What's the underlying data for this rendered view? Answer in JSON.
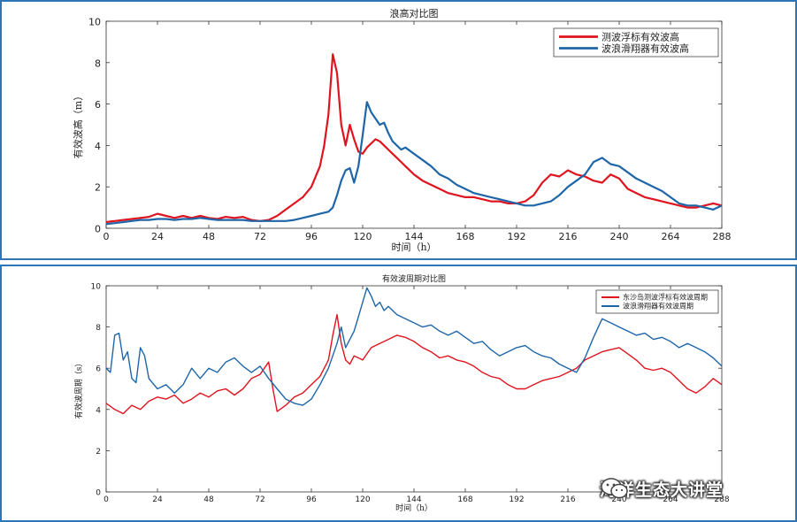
{
  "chart_data": [
    {
      "type": "line",
      "title": "浪高对比图",
      "xlabel": "时间（h）",
      "ylabel": "有效波高（m）",
      "xlim": [
        0,
        288
      ],
      "ylim": [
        0,
        10
      ],
      "xticks": [
        0,
        24,
        48,
        72,
        96,
        120,
        144,
        168,
        192,
        216,
        240,
        264,
        288
      ],
      "yticks": [
        0,
        2,
        4,
        6,
        8,
        10
      ],
      "legend_position": "top-right",
      "series": [
        {
          "name": "测波浮标有效波高",
          "color": "#e0141e",
          "x": [
            0,
            4,
            8,
            12,
            16,
            20,
            24,
            28,
            32,
            36,
            40,
            44,
            48,
            52,
            56,
            60,
            64,
            68,
            72,
            76,
            80,
            84,
            88,
            92,
            96,
            100,
            102,
            104,
            106,
            108,
            110,
            112,
            114,
            116,
            118,
            120,
            122,
            124,
            126,
            128,
            130,
            132,
            134,
            136,
            138,
            140,
            144,
            148,
            152,
            156,
            160,
            164,
            168,
            172,
            176,
            180,
            184,
            188,
            192,
            196,
            200,
            204,
            208,
            212,
            216,
            220,
            224,
            228,
            232,
            236,
            240,
            244,
            248,
            252,
            256,
            260,
            264,
            268,
            272,
            276,
            280,
            284,
            288
          ],
          "values": [
            0.3,
            0.35,
            0.4,
            0.45,
            0.5,
            0.55,
            0.7,
            0.6,
            0.5,
            0.6,
            0.5,
            0.6,
            0.5,
            0.45,
            0.55,
            0.5,
            0.55,
            0.4,
            0.35,
            0.4,
            0.6,
            0.9,
            1.2,
            1.5,
            2.0,
            3.0,
            4.0,
            5.5,
            8.4,
            7.5,
            5.0,
            4.0,
            5.0,
            4.3,
            3.7,
            3.6,
            3.9,
            4.1,
            4.3,
            4.2,
            4.0,
            3.8,
            3.6,
            3.4,
            3.2,
            3.0,
            2.6,
            2.3,
            2.1,
            1.9,
            1.7,
            1.6,
            1.5,
            1.5,
            1.4,
            1.3,
            1.3,
            1.2,
            1.2,
            1.3,
            1.6,
            2.2,
            2.6,
            2.5,
            2.8,
            2.6,
            2.5,
            2.3,
            2.2,
            2.6,
            2.4,
            1.9,
            1.7,
            1.5,
            1.4,
            1.3,
            1.2,
            1.1,
            1.0,
            1.0,
            1.1,
            1.2,
            1.1
          ]
        },
        {
          "name": "波浪滑翔器有效波高",
          "color": "#1f66a8",
          "x": [
            0,
            4,
            8,
            12,
            16,
            20,
            24,
            28,
            32,
            36,
            40,
            44,
            48,
            52,
            56,
            60,
            64,
            68,
            72,
            76,
            80,
            84,
            88,
            92,
            96,
            100,
            104,
            106,
            108,
            110,
            112,
            114,
            116,
            118,
            120,
            122,
            124,
            126,
            128,
            130,
            132,
            134,
            136,
            138,
            140,
            144,
            148,
            152,
            156,
            160,
            164,
            168,
            172,
            176,
            180,
            184,
            188,
            192,
            196,
            200,
            204,
            208,
            212,
            216,
            220,
            224,
            228,
            232,
            236,
            240,
            244,
            248,
            252,
            256,
            260,
            264,
            268,
            272,
            276,
            280,
            284,
            288
          ],
          "values": [
            0.2,
            0.25,
            0.3,
            0.35,
            0.4,
            0.4,
            0.45,
            0.45,
            0.4,
            0.45,
            0.45,
            0.5,
            0.45,
            0.4,
            0.4,
            0.4,
            0.4,
            0.35,
            0.35,
            0.35,
            0.35,
            0.35,
            0.4,
            0.5,
            0.6,
            0.7,
            0.8,
            1.0,
            1.6,
            2.3,
            2.8,
            2.9,
            2.2,
            3.0,
            4.5,
            6.1,
            5.6,
            5.3,
            5.0,
            5.1,
            4.6,
            4.2,
            4.0,
            3.8,
            3.9,
            3.6,
            3.3,
            3.0,
            2.6,
            2.4,
            2.1,
            1.9,
            1.7,
            1.6,
            1.5,
            1.4,
            1.3,
            1.2,
            1.1,
            1.1,
            1.2,
            1.3,
            1.6,
            2.0,
            2.3,
            2.6,
            3.2,
            3.4,
            3.1,
            3.0,
            2.7,
            2.4,
            2.2,
            2.0,
            1.8,
            1.5,
            1.2,
            1.1,
            1.1,
            1.0,
            0.9,
            1.1
          ]
        }
      ]
    },
    {
      "type": "line",
      "title": "有效波周期对比图",
      "xlabel": "时间（h）",
      "ylabel": "有效波周期（s）",
      "xlim": [
        0,
        288
      ],
      "ylim": [
        0,
        10
      ],
      "xticks": [
        0,
        24,
        48,
        72,
        96,
        120,
        144,
        168,
        192,
        216,
        240,
        264,
        288
      ],
      "yticks": [
        0,
        2,
        4,
        6,
        8,
        10
      ],
      "legend_position": "top-right",
      "series": [
        {
          "name": "东沙岛测波浮标有效波周期",
          "color": "#e0141e",
          "x": [
            0,
            4,
            8,
            12,
            16,
            20,
            24,
            28,
            32,
            36,
            40,
            44,
            48,
            52,
            56,
            60,
            64,
            68,
            72,
            76,
            78,
            80,
            84,
            88,
            92,
            96,
            100,
            104,
            106,
            108,
            110,
            112,
            114,
            116,
            118,
            120,
            124,
            128,
            132,
            136,
            140,
            144,
            148,
            152,
            156,
            160,
            164,
            168,
            172,
            176,
            180,
            184,
            188,
            192,
            196,
            200,
            204,
            208,
            212,
            216,
            220,
            224,
            228,
            232,
            236,
            240,
            244,
            248,
            252,
            256,
            260,
            264,
            268,
            272,
            276,
            280,
            284,
            288
          ],
          "values": [
            4.3,
            4.0,
            3.8,
            4.2,
            4.0,
            4.4,
            4.6,
            4.5,
            4.7,
            4.3,
            4.5,
            4.8,
            4.6,
            4.9,
            5.0,
            4.7,
            5.0,
            5.5,
            5.7,
            6.3,
            5.0,
            3.9,
            4.2,
            4.6,
            4.8,
            5.2,
            5.6,
            6.4,
            7.6,
            8.6,
            7.2,
            6.4,
            6.2,
            6.6,
            6.5,
            6.4,
            7.0,
            7.2,
            7.4,
            7.6,
            7.5,
            7.3,
            7.0,
            6.8,
            6.5,
            6.6,
            6.4,
            6.3,
            6.1,
            5.8,
            5.6,
            5.5,
            5.2,
            5.0,
            5.0,
            5.2,
            5.4,
            5.5,
            5.6,
            5.8,
            6.0,
            6.4,
            6.6,
            6.8,
            6.9,
            7.0,
            6.7,
            6.4,
            6.0,
            5.9,
            6.0,
            5.8,
            5.4,
            5.0,
            4.8,
            5.1,
            5.5,
            5.2
          ]
        },
        {
          "name": "波浪滑翔器有效波周期",
          "color": "#1f66a8",
          "x": [
            0,
            2,
            4,
            6,
            8,
            10,
            12,
            14,
            16,
            18,
            20,
            24,
            28,
            32,
            36,
            40,
            44,
            48,
            52,
            56,
            60,
            64,
            68,
            72,
            76,
            80,
            84,
            88,
            92,
            96,
            100,
            104,
            108,
            110,
            112,
            114,
            116,
            118,
            120,
            122,
            124,
            126,
            128,
            130,
            132,
            136,
            140,
            144,
            148,
            152,
            156,
            160,
            164,
            168,
            172,
            176,
            180,
            184,
            188,
            192,
            196,
            200,
            204,
            208,
            212,
            216,
            220,
            224,
            228,
            232,
            236,
            240,
            244,
            248,
            252,
            256,
            260,
            264,
            268,
            272,
            276,
            280,
            284,
            288
          ],
          "values": [
            6.0,
            5.8,
            7.6,
            7.7,
            6.4,
            6.8,
            5.5,
            5.3,
            7.0,
            6.6,
            5.5,
            5.0,
            5.2,
            4.8,
            5.2,
            6.0,
            5.5,
            6.0,
            5.8,
            6.3,
            6.5,
            6.1,
            5.8,
            6.1,
            5.5,
            5.0,
            4.5,
            4.3,
            4.2,
            4.5,
            5.2,
            6.0,
            7.2,
            8.0,
            7.0,
            7.4,
            7.8,
            8.5,
            9.2,
            9.9,
            9.5,
            9.0,
            9.2,
            8.8,
            9.0,
            8.6,
            8.4,
            8.2,
            8.0,
            8.1,
            7.8,
            7.6,
            7.8,
            7.5,
            7.2,
            7.3,
            6.9,
            6.6,
            6.8,
            7.0,
            7.1,
            6.8,
            6.6,
            6.5,
            6.2,
            6.0,
            5.8,
            6.5,
            7.5,
            8.4,
            8.2,
            8.0,
            7.8,
            7.6,
            7.7,
            7.4,
            7.5,
            7.3,
            7.0,
            7.2,
            7.0,
            6.8,
            6.5,
            6.1
          ]
        }
      ]
    }
  ],
  "watermark": {
    "text": "海洋生态大讲堂",
    "icon": "wechat-icon"
  }
}
